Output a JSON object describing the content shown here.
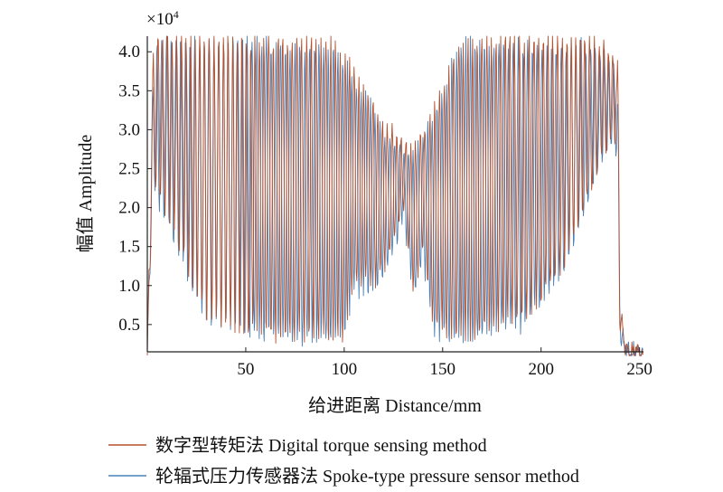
{
  "chart_data": {
    "type": "line",
    "xlabel": "给进距离 Distance/mm",
    "ylabel": "幅值 Amplitude",
    "y_multiplier_label": "×10",
    "y_multiplier_exp": "4",
    "xlim": [
      0,
      252
    ],
    "ylim": [
      0.15,
      4.2
    ],
    "y_unit_scale": 10000,
    "x_ticks": [
      50,
      100,
      150,
      200,
      250
    ],
    "y_ticks": [
      0.5,
      1.0,
      1.5,
      2.0,
      2.5,
      3.0,
      3.5,
      4.0
    ],
    "x_tick_labels": [
      "50",
      "100",
      "150",
      "200",
      "250"
    ],
    "y_tick_labels": [
      "0.5",
      "1.0",
      "1.5",
      "2.0",
      "2.5",
      "3.0",
      "3.5",
      "4.0"
    ],
    "grid": false,
    "legend_position": "bottom",
    "series": [
      {
        "name": "数字型转矩法 Digital torque sensing method",
        "color": "#b5502d",
        "envelope": {
          "x": [
            0,
            3,
            5,
            10,
            20,
            30,
            40,
            50,
            60,
            70,
            80,
            85,
            90,
            95,
            100,
            105,
            110,
            115,
            120,
            125,
            130,
            135,
            140,
            145,
            150,
            155,
            160,
            165,
            170,
            175,
            180,
            190,
            200,
            210,
            220,
            230,
            236,
            239,
            240,
            242,
            245,
            248,
            252
          ],
          "upper": [
            0.2,
            4.1,
            4.2,
            4.2,
            4.2,
            4.2,
            4.2,
            4.2,
            4.2,
            4.2,
            4.2,
            4.2,
            4.2,
            4.2,
            4.0,
            3.8,
            3.6,
            3.4,
            3.1,
            3.0,
            2.9,
            2.8,
            3.0,
            3.3,
            3.6,
            4.0,
            4.2,
            4.2,
            4.2,
            4.2,
            4.2,
            4.2,
            4.2,
            4.2,
            4.2,
            4.1,
            4.0,
            3.8,
            1.0,
            0.3,
            0.2,
            0.2,
            0.2
          ],
          "lower": [
            0.1,
            2.5,
            2.2,
            1.9,
            1.2,
            0.6,
            0.5,
            0.4,
            0.35,
            0.3,
            0.3,
            0.3,
            0.3,
            0.3,
            0.3,
            1.0,
            1.0,
            1.0,
            1.2,
            1.5,
            2.0,
            0.9,
            1.4,
            0.5,
            0.35,
            0.3,
            0.3,
            0.3,
            0.35,
            0.4,
            0.45,
            0.5,
            0.8,
            1.2,
            1.8,
            2.6,
            2.9,
            2.7,
            0.35,
            0.2,
            0.15,
            0.1,
            0.1
          ]
        }
      },
      {
        "name": "轮辐式压力传感器法 Spoke-type pressure sensor method",
        "color": "#4a80b8",
        "envelope": {
          "x": [
            0,
            3,
            5,
            10,
            20,
            30,
            40,
            50,
            60,
            70,
            80,
            85,
            90,
            95,
            100,
            105,
            110,
            115,
            120,
            125,
            130,
            135,
            140,
            145,
            150,
            155,
            160,
            165,
            170,
            175,
            180,
            190,
            200,
            210,
            220,
            230,
            236,
            239,
            240,
            242,
            245,
            248,
            252
          ],
          "upper": [
            0.2,
            4.0,
            4.1,
            4.2,
            4.2,
            4.2,
            4.2,
            4.2,
            4.2,
            4.1,
            4.1,
            4.1,
            4.1,
            4.1,
            3.9,
            3.7,
            3.5,
            3.3,
            3.0,
            2.9,
            2.8,
            2.7,
            2.9,
            3.2,
            3.5,
            3.9,
            4.2,
            4.2,
            4.2,
            4.1,
            4.1,
            4.1,
            4.1,
            4.1,
            4.1,
            4.0,
            3.9,
            3.7,
            1.0,
            0.3,
            0.2,
            0.2,
            0.2
          ],
          "lower": [
            0.1,
            2.4,
            2.1,
            1.8,
            1.1,
            0.5,
            0.45,
            0.35,
            0.3,
            0.25,
            0.25,
            0.25,
            0.25,
            0.25,
            0.25,
            0.9,
            0.9,
            0.9,
            1.1,
            1.4,
            1.9,
            0.8,
            1.3,
            0.45,
            0.3,
            0.25,
            0.25,
            0.25,
            0.3,
            0.35,
            0.4,
            0.45,
            0.7,
            1.1,
            1.7,
            2.5,
            2.8,
            2.6,
            0.3,
            0.15,
            0.12,
            0.1,
            0.1
          ]
        }
      }
    ]
  }
}
